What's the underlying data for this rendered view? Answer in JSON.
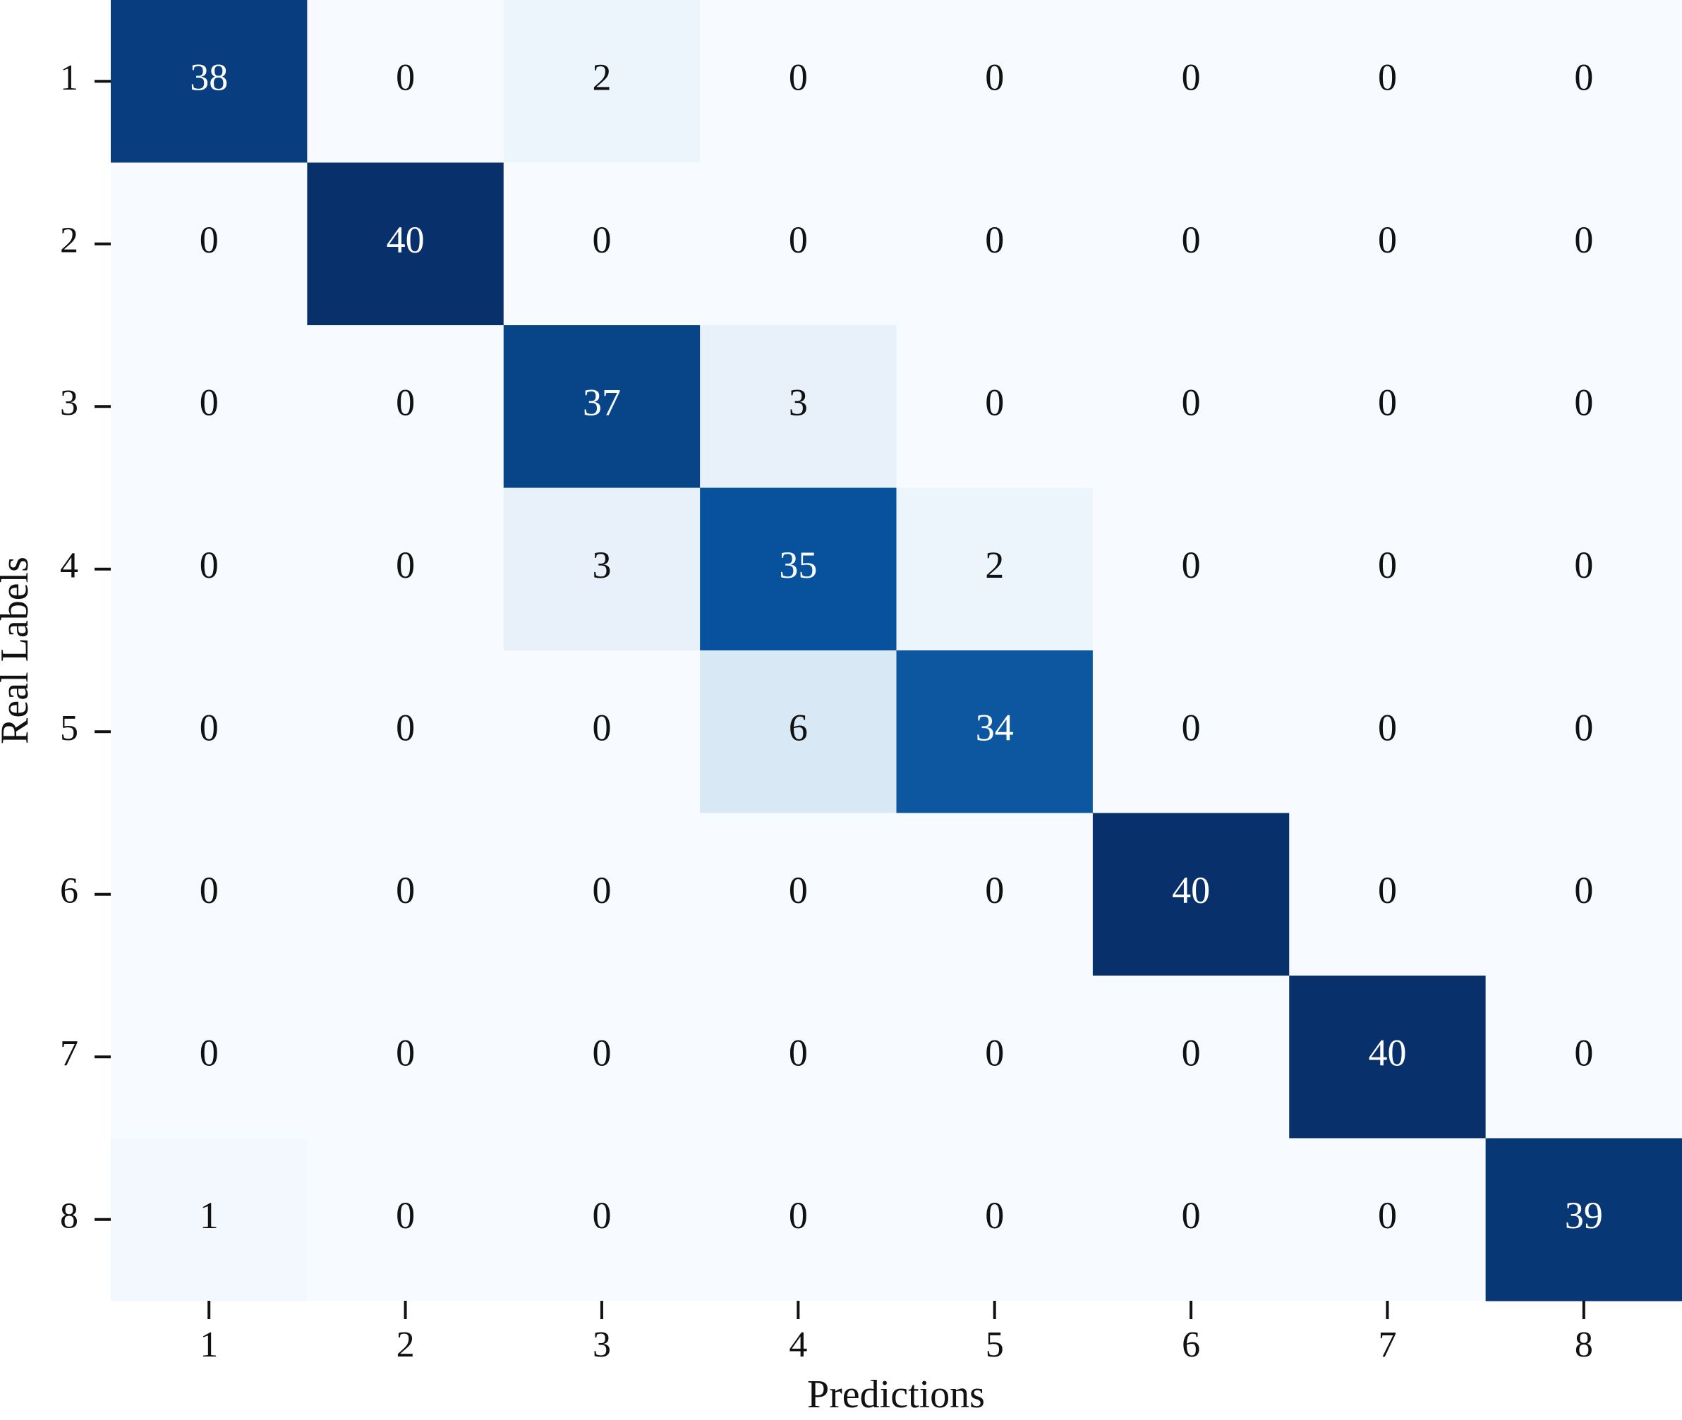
{
  "chart_data": {
    "type": "heatmap",
    "x_label": "Predictions",
    "y_label": "Real Labels",
    "x_categories": [
      "1",
      "2",
      "3",
      "4",
      "5",
      "6",
      "7",
      "8"
    ],
    "y_categories": [
      "1",
      "2",
      "3",
      "4",
      "5",
      "6",
      "7",
      "8"
    ],
    "z": [
      [
        38,
        0,
        2,
        0,
        0,
        0,
        0,
        0
      ],
      [
        0,
        40,
        0,
        0,
        0,
        0,
        0,
        0
      ],
      [
        0,
        0,
        37,
        3,
        0,
        0,
        0,
        0
      ],
      [
        0,
        0,
        3,
        35,
        2,
        0,
        0,
        0
      ],
      [
        0,
        0,
        0,
        6,
        34,
        0,
        0,
        0
      ],
      [
        0,
        0,
        0,
        0,
        0,
        40,
        0,
        0
      ],
      [
        0,
        0,
        0,
        0,
        0,
        0,
        40,
        0
      ],
      [
        1,
        0,
        0,
        0,
        0,
        0,
        0,
        39
      ]
    ],
    "colormap": "Blues"
  }
}
